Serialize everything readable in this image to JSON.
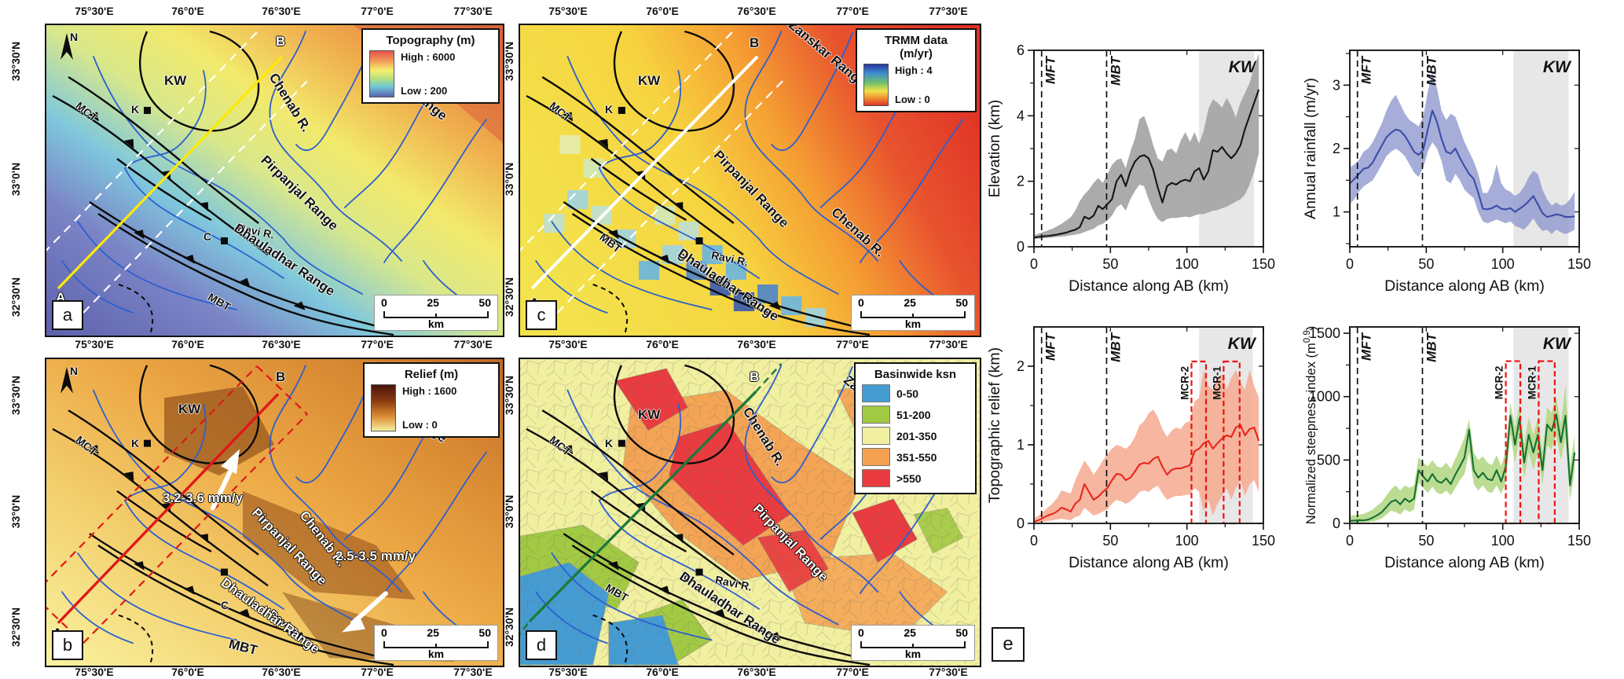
{
  "letters": {
    "a": "a",
    "b": "b",
    "c": "c",
    "d": "d",
    "e": "e"
  },
  "axes": {
    "lon": [
      "75°30'E",
      "76°0'E",
      "76°30'E",
      "77°0'E",
      "77°30'E"
    ],
    "lat": [
      "33°30'N",
      "33°0'N",
      "32°30'N"
    ]
  },
  "places": {
    "north": "N",
    "mct": "MCT",
    "mbt": "MBT",
    "k": "K",
    "kw": "KW",
    "a_end": "A",
    "b_end": "B",
    "c_town": "C",
    "chenab": "Chenab R.",
    "ravi": "Ravi R.",
    "zanskar": "Zanskar Range",
    "pirpanjal": "Pirpanjal Range",
    "dhauladhar": "Dhauladhar Range"
  },
  "scalebar": {
    "zero": "0",
    "mid": "25",
    "max": "50",
    "unit": "km"
  },
  "maps": {
    "a": {
      "legend": {
        "title": "Topography (m)",
        "high": "High : 6000",
        "low": "Low : 200"
      }
    },
    "b": {
      "legend": {
        "title": "Relief (m)",
        "high": "High : 1600",
        "low": "Low : 0"
      },
      "arrow_upper": "3.2-3.6 mm/y",
      "arrow_lower": "2.5-3.5 mm/y"
    },
    "c": {
      "legend": {
        "title": "TRMM data",
        "title2": "(m/yr)",
        "high": "High : 4",
        "low": "Low : 0"
      }
    },
    "d": {
      "legend": {
        "title": "Basinwide ksn",
        "classes": [
          {
            "label": "0-50",
            "color": "#459cd3"
          },
          {
            "label": "51-200",
            "color": "#a2c943"
          },
          {
            "label": "201-350",
            "color": "#f1efa0"
          },
          {
            "label": "351-550",
            "color": "#f5a152"
          },
          {
            "label": ">550",
            "color": "#e93b40"
          }
        ]
      }
    }
  },
  "chart_data": [
    {
      "type": "line",
      "title": "",
      "ylabel": "Elevation (km)",
      "xlabel": "Distance along AB (km)",
      "xlim": [
        0,
        150
      ],
      "ylim": [
        0,
        6
      ],
      "xticks": [
        0,
        50,
        100,
        150
      ],
      "yticks": [
        0,
        2,
        4,
        6
      ],
      "xticks_minor": [
        25,
        75,
        125
      ],
      "yticks_minor": [
        1,
        3,
        5
      ],
      "line_color": "#151515",
      "band_color": "#a6a6a6",
      "band_opacity": 0.95,
      "annotations": {
        "mft_x": 5,
        "mft_label": "MFT",
        "mbt_x": 47.5,
        "mbt_label": "MBT",
        "kw": [
          108,
          144
        ],
        "kw_label": "KW"
      },
      "x": [
        0,
        3,
        6,
        9,
        12,
        15,
        18,
        21,
        24,
        27,
        30,
        33,
        36,
        39,
        42,
        45,
        48,
        51,
        54,
        57,
        60,
        63,
        66,
        69,
        72,
        75,
        78,
        81,
        84,
        87,
        90,
        93,
        96,
        99,
        102,
        105,
        108,
        111,
        114,
        117,
        120,
        123,
        126,
        129,
        132,
        135,
        138,
        141,
        144,
        147
      ],
      "mean": [
        0.28,
        0.3,
        0.32,
        0.33,
        0.35,
        0.37,
        0.4,
        0.43,
        0.48,
        0.52,
        0.6,
        0.92,
        0.85,
        0.95,
        1.25,
        1.15,
        1.3,
        1.45,
        2.0,
        2.2,
        1.85,
        2.3,
        2.6,
        2.75,
        2.8,
        2.7,
        2.35,
        1.8,
        1.35,
        1.85,
        1.95,
        1.9,
        2.0,
        2.05,
        2.0,
        2.3,
        2.4,
        2.05,
        2.3,
        2.95,
        2.9,
        3.05,
        2.85,
        2.7,
        2.85,
        3.1,
        3.6,
        4.0,
        4.4,
        4.8
      ],
      "upper": [
        0.35,
        0.4,
        0.45,
        0.5,
        0.55,
        0.62,
        0.7,
        0.8,
        0.9,
        1.1,
        1.4,
        1.6,
        1.75,
        1.95,
        2.1,
        1.95,
        2.2,
        2.5,
        2.65,
        2.7,
        2.4,
        2.9,
        3.3,
        3.9,
        4.0,
        3.6,
        3.1,
        2.7,
        2.6,
        2.95,
        3.0,
        2.85,
        3.25,
        3.5,
        3.2,
        3.5,
        3.15,
        3.55,
        4.2,
        4.5,
        4.4,
        4.25,
        4.55,
        4.3,
        3.95,
        4.4,
        4.7,
        5.0,
        5.5,
        5.9
      ],
      "lower": [
        0.24,
        0.25,
        0.26,
        0.27,
        0.28,
        0.3,
        0.31,
        0.33,
        0.35,
        0.37,
        0.4,
        0.45,
        0.5,
        0.55,
        0.65,
        0.7,
        0.8,
        0.95,
        1.2,
        1.3,
        1.1,
        1.45,
        1.7,
        1.9,
        1.85,
        1.45,
        1.1,
        0.85,
        0.75,
        0.85,
        0.88,
        0.88,
        0.9,
        0.92,
        0.9,
        0.95,
        1.0,
        1.0,
        1.05,
        1.1,
        1.12,
        1.18,
        1.22,
        1.3,
        1.38,
        1.45,
        1.6,
        1.9,
        2.3,
        2.85
      ]
    },
    {
      "type": "line",
      "title": "",
      "ylabel": "Annual rainfall (m/yr)",
      "xlabel": "Distance along AB (km)",
      "xlim": [
        0,
        150
      ],
      "ylim": [
        0.45,
        3.55
      ],
      "xticks": [
        0,
        50,
        100,
        150
      ],
      "yticks": [
        1,
        2,
        3
      ],
      "xticks_minor": [
        25,
        75,
        125
      ],
      "yticks_minor": [
        0.5,
        1.5,
        2.5,
        3.5
      ],
      "line_color": "#3b4da8",
      "band_color": "#8f99ce",
      "band_opacity": 0.8,
      "annotations": {
        "mft_x": 5,
        "mft_label": "MFT",
        "mbt_x": 47.5,
        "mbt_label": "MBT",
        "kw": [
          107,
          143
        ],
        "kw_label": "KW"
      },
      "x": [
        0,
        3,
        6,
        9,
        12,
        15,
        18,
        21,
        24,
        27,
        30,
        33,
        36,
        39,
        42,
        45,
        48,
        51,
        54,
        57,
        60,
        63,
        66,
        69,
        72,
        75,
        78,
        81,
        84,
        87,
        90,
        93,
        96,
        99,
        102,
        105,
        108,
        111,
        114,
        117,
        120,
        123,
        126,
        129,
        132,
        135,
        138,
        141,
        144,
        147
      ],
      "mean": [
        1.45,
        1.52,
        1.6,
        1.68,
        1.7,
        1.78,
        1.92,
        2.05,
        2.18,
        2.25,
        2.3,
        2.28,
        2.2,
        2.08,
        1.95,
        1.9,
        1.98,
        2.3,
        2.6,
        2.42,
        2.15,
        1.95,
        1.92,
        2.0,
        1.85,
        1.72,
        1.6,
        1.52,
        1.3,
        1.05,
        1.04,
        1.06,
        1.1,
        1.05,
        1.04,
        1.06,
        1.0,
        1.05,
        1.1,
        1.17,
        1.25,
        1.12,
        0.98,
        0.92,
        0.94,
        0.96,
        0.95,
        0.92,
        0.92,
        0.93
      ],
      "upper": [
        1.7,
        1.75,
        1.82,
        1.95,
        2.0,
        2.1,
        2.25,
        2.4,
        2.6,
        2.75,
        2.85,
        2.7,
        2.55,
        2.45,
        2.4,
        2.35,
        2.5,
        2.9,
        3.2,
        2.95,
        2.6,
        2.45,
        2.55,
        2.5,
        2.3,
        2.1,
        1.95,
        1.8,
        1.6,
        1.3,
        1.3,
        1.45,
        1.75,
        1.45,
        1.35,
        1.32,
        1.25,
        1.3,
        1.4,
        1.55,
        1.65,
        1.6,
        1.35,
        1.2,
        1.1,
        1.15,
        1.1,
        1.12,
        1.2,
        1.32
      ],
      "lower": [
        1.12,
        1.2,
        1.32,
        1.4,
        1.45,
        1.5,
        1.62,
        1.75,
        1.88,
        1.95,
        2.0,
        1.95,
        1.88,
        1.75,
        1.62,
        1.55,
        1.7,
        1.95,
        2.1,
        2.0,
        1.8,
        1.5,
        1.45,
        1.6,
        1.5,
        1.35,
        1.28,
        1.22,
        1.0,
        0.85,
        0.82,
        0.85,
        0.88,
        0.85,
        0.82,
        0.85,
        0.78,
        0.75,
        0.72,
        0.8,
        0.9,
        0.78,
        0.7,
        0.72,
        0.65,
        0.72,
        0.68,
        0.65,
        0.68,
        0.72
      ]
    },
    {
      "type": "line",
      "title": "",
      "ylabel": "Topographic relief (km)",
      "xlabel": "Distance along AB (km)",
      "xlim": [
        0,
        150
      ],
      "ylim": [
        0,
        2.5
      ],
      "xticks": [
        0,
        50,
        100,
        150
      ],
      "yticks": [
        0,
        1,
        2
      ],
      "xticks_minor": [
        25,
        75,
        125
      ],
      "yticks_minor": [
        0.5,
        1.5
      ],
      "line_color": "#e8251d",
      "band_color": "#f5a98e",
      "band_opacity": 0.85,
      "annotations": {
        "mft_x": 5,
        "mft_label": "MFT",
        "mbt_x": 47.5,
        "mbt_label": "MBT",
        "kw": [
          108,
          143
        ],
        "kw_label": "KW"
      },
      "boxes": [
        {
          "label": "MCR-2",
          "x0": 103,
          "x1": 112.5,
          "ytop": 2.06
        },
        {
          "label": "MCR-1",
          "x0": 124,
          "x1": 134.5,
          "ytop": 2.06
        }
      ],
      "x": [
        0,
        3,
        6,
        9,
        12,
        15,
        18,
        21,
        24,
        27,
        30,
        33,
        36,
        39,
        42,
        45,
        48,
        51,
        54,
        57,
        60,
        63,
        66,
        69,
        72,
        75,
        78,
        81,
        84,
        87,
        90,
        93,
        96,
        99,
        102,
        105,
        108,
        111,
        114,
        117,
        120,
        123,
        126,
        129,
        132,
        135,
        138,
        141,
        144,
        147
      ],
      "mean": [
        0.02,
        0.04,
        0.07,
        0.1,
        0.12,
        0.15,
        0.2,
        0.18,
        0.15,
        0.25,
        0.3,
        0.5,
        0.4,
        0.3,
        0.34,
        0.4,
        0.45,
        0.55,
        0.63,
        0.62,
        0.55,
        0.58,
        0.66,
        0.75,
        0.77,
        0.76,
        0.82,
        0.85,
        0.72,
        0.62,
        0.68,
        0.7,
        0.7,
        0.72,
        0.74,
        0.92,
        0.95,
        1.02,
        1.05,
        0.95,
        1.02,
        1.08,
        1.12,
        1.1,
        1.22,
        1.25,
        1.12,
        1.2,
        1.22,
        1.05
      ],
      "upper": [
        0.06,
        0.1,
        0.15,
        0.2,
        0.25,
        0.32,
        0.42,
        0.4,
        0.38,
        0.55,
        0.68,
        0.8,
        0.72,
        0.62,
        0.7,
        0.8,
        0.88,
        0.95,
        1.0,
        0.98,
        0.95,
        1.0,
        1.1,
        1.25,
        1.3,
        1.4,
        1.45,
        1.35,
        1.2,
        1.1,
        1.18,
        1.22,
        1.2,
        1.28,
        1.3,
        1.55,
        1.6,
        1.95,
        1.75,
        1.7,
        1.85,
        1.9,
        1.7,
        1.85,
        1.95,
        1.8,
        1.7,
        1.95,
        1.75,
        1.6
      ],
      "lower": [
        0.0,
        0.01,
        0.02,
        0.03,
        0.04,
        0.05,
        0.06,
        0.05,
        0.04,
        0.08,
        0.1,
        0.2,
        0.15,
        0.1,
        0.12,
        0.15,
        0.18,
        0.25,
        0.3,
        0.28,
        0.25,
        0.28,
        0.33,
        0.4,
        0.42,
        0.4,
        0.45,
        0.48,
        0.38,
        0.3,
        0.33,
        0.35,
        0.35,
        0.36,
        0.37,
        0.45,
        0.4,
        0.15,
        0.3,
        0.1,
        0.25,
        0.35,
        0.45,
        0.3,
        0.45,
        0.55,
        0.35,
        0.5,
        0.55,
        0.4
      ]
    },
    {
      "type": "line",
      "title": "",
      "ylabel": "Normalized steepness index (m",
      "ylabel_sup": "0.9",
      "ylabel_end": ")",
      "xlabel": "Distance along AB (km)",
      "xlim": [
        0,
        150
      ],
      "ylim": [
        0,
        1550
      ],
      "xticks": [
        0,
        50,
        100,
        150
      ],
      "yticks": [
        0,
        500,
        1000,
        1500
      ],
      "xticks_minor": [
        25,
        75,
        125
      ],
      "yticks_minor": [
        250,
        750,
        1250
      ],
      "line_color": "#156f34",
      "band_color": "#b5d887",
      "band_opacity": 0.9,
      "annotations": {
        "mft_x": 5,
        "mft_label": "MFT",
        "mbt_x": 47.5,
        "mbt_label": "MBT",
        "kw": [
          107,
          143
        ],
        "kw_label": "KW"
      },
      "boxes": [
        {
          "label": "MCR-2",
          "x0": 102,
          "x1": 111.5,
          "ytop": 1280
        },
        {
          "label": "MCR-1",
          "x0": 123.5,
          "x1": 134,
          "ytop": 1280
        }
      ],
      "x": [
        0,
        3,
        6,
        9,
        12,
        15,
        18,
        21,
        24,
        27,
        30,
        33,
        36,
        39,
        42,
        45,
        48,
        51,
        54,
        57,
        60,
        63,
        66,
        69,
        72,
        75,
        78,
        81,
        84,
        87,
        90,
        93,
        96,
        99,
        102,
        105,
        108,
        111,
        114,
        117,
        120,
        123,
        126,
        129,
        132,
        135,
        138,
        141,
        144,
        147
      ],
      "mean": [
        20,
        22,
        25,
        24,
        30,
        45,
        65,
        90,
        130,
        170,
        185,
        150,
        195,
        170,
        195,
        420,
        370,
        330,
        390,
        335,
        320,
        355,
        310,
        385,
        450,
        520,
        740,
        420,
        360,
        400,
        350,
        340,
        420,
        330,
        450,
        850,
        620,
        830,
        480,
        700,
        560,
        700,
        420,
        780,
        730,
        860,
        640,
        850,
        300,
        560
      ],
      "upper": [
        60,
        65,
        70,
        75,
        90,
        110,
        140,
        170,
        220,
        270,
        300,
        260,
        300,
        280,
        300,
        520,
        480,
        450,
        500,
        450,
        440,
        480,
        430,
        510,
        590,
        680,
        820,
        560,
        500,
        530,
        480,
        460,
        540,
        450,
        580,
        950,
        760,
        950,
        620,
        840,
        700,
        840,
        560,
        920,
        870,
        1000,
        780,
        1100,
        450,
        700
      ],
      "lower": [
        5,
        5,
        8,
        8,
        10,
        15,
        25,
        40,
        70,
        100,
        90,
        70,
        110,
        90,
        110,
        320,
        280,
        240,
        290,
        240,
        230,
        260,
        220,
        280,
        340,
        390,
        560,
        310,
        260,
        300,
        250,
        240,
        300,
        230,
        330,
        700,
        480,
        680,
        350,
        560,
        420,
        560,
        300,
        620,
        580,
        700,
        500,
        680,
        180,
        420
      ]
    }
  ]
}
